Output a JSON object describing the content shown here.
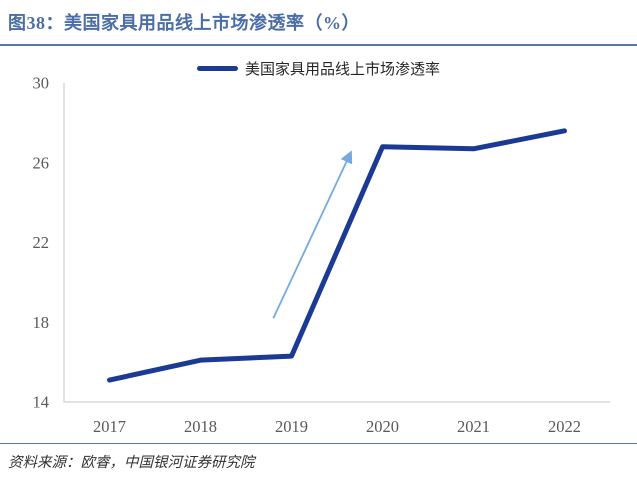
{
  "header": {
    "title": "图38：美国家具用品线上市场渗透率（%）"
  },
  "footer": {
    "source": "资料来源：欧睿，中国银河证券研究院"
  },
  "colors": {
    "title": "#4C6EA6",
    "rule": "#5878A8",
    "line": "#1A3A94",
    "arrow": "#74AADF",
    "axis": "#D9D9D9",
    "tick": "#595959",
    "legend_text": "#262626",
    "source": "#333333"
  },
  "chart_data": {
    "type": "line",
    "title": "图38：美国家具用品线上市场渗透率（%）",
    "categories": [
      "2017",
      "2018",
      "2019",
      "2020",
      "2021",
      "2022"
    ],
    "series": [
      {
        "name": "美国家具用品线上市场渗透率",
        "values": [
          15.1,
          16.1,
          16.3,
          26.8,
          26.7,
          27.6
        ]
      }
    ],
    "ylim": [
      14,
      30
    ],
    "yticks": [
      14,
      18,
      22,
      26,
      30
    ],
    "grid": false,
    "legend_position": "top",
    "annotations": [
      {
        "type": "arrow",
        "from": [
          2018.8,
          18.2
        ],
        "to": [
          2019.65,
          26.5
        ]
      }
    ]
  }
}
